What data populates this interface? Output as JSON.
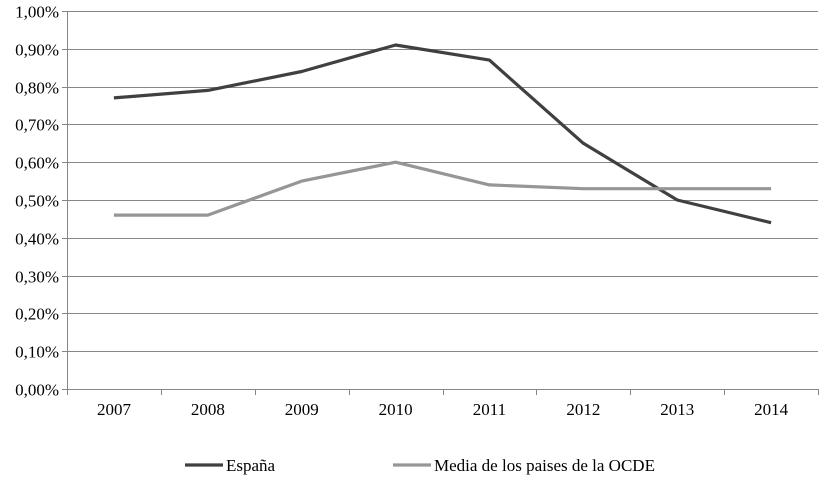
{
  "chart_data": {
    "type": "line",
    "title": "",
    "xlabel": "",
    "ylabel": "",
    "categories": [
      "2007",
      "2008",
      "2009",
      "2010",
      "2011",
      "2012",
      "2013",
      "2014"
    ],
    "ylim": [
      0,
      1.0
    ],
    "yticks": [
      0,
      0.1,
      0.2,
      0.3,
      0.4,
      0.5,
      0.6,
      0.7,
      0.8,
      0.9,
      1.0
    ],
    "ytick_labels": [
      "0,00%",
      "0,10%",
      "0,20%",
      "0,30%",
      "0,40%",
      "0,50%",
      "0,60%",
      "0,70%",
      "0,80%",
      "0,90%",
      "1,00%"
    ],
    "grid": true,
    "legend_position": "bottom",
    "series": [
      {
        "name": "España",
        "color": "#404040",
        "values": [
          0.77,
          0.79,
          0.84,
          0.91,
          0.87,
          0.65,
          0.5,
          0.44
        ]
      },
      {
        "name": "Media de los paises de la OCDE",
        "color": "#969696",
        "values": [
          0.46,
          0.46,
          0.55,
          0.6,
          0.54,
          0.53,
          0.53,
          0.53
        ]
      }
    ]
  }
}
